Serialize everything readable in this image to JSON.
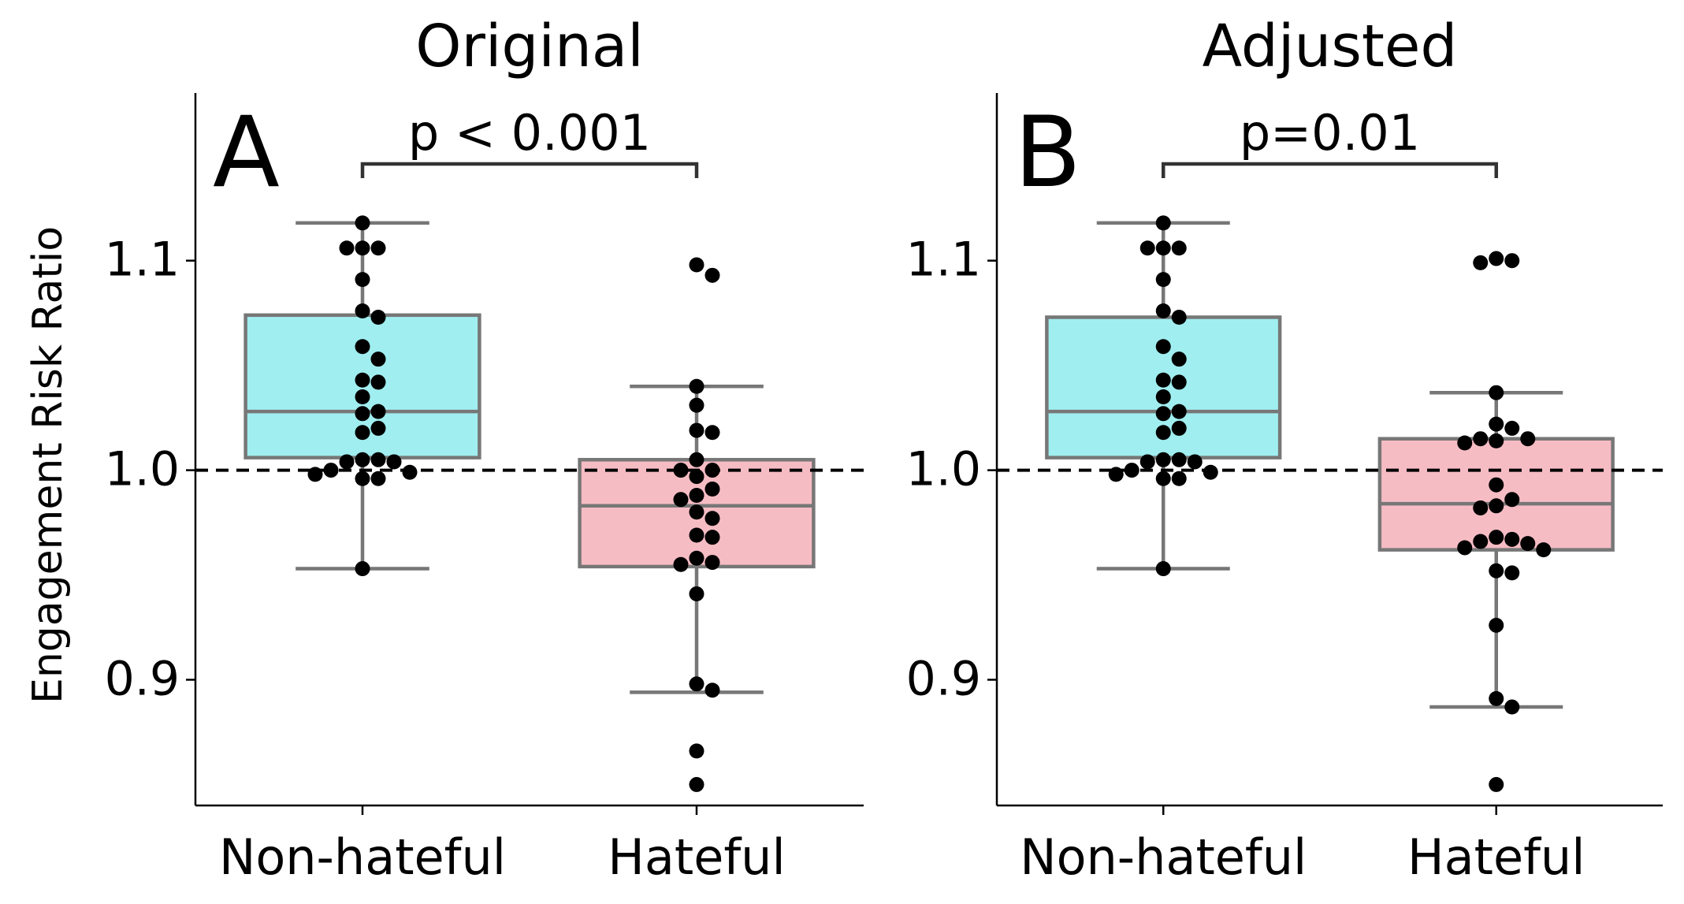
{
  "figure": {
    "ylabel": "Engagement Risk Ratio"
  },
  "chart_data": [
    {
      "type": "box",
      "panel_letter": "A",
      "title": "Original",
      "ylabel": "Engagement Risk Ratio",
      "ylim": [
        0.84,
        1.18
      ],
      "yticks": [
        0.9,
        1.0,
        1.1
      ],
      "ytick_labels": [
        "0.9",
        "1.0",
        "1.1"
      ],
      "reference_line": 1.0,
      "categories": [
        "Non-hateful",
        "Hateful"
      ],
      "annotation": "p < 0.001",
      "colors": {
        "Non-hateful": "#a0eef0",
        "Hateful": "#f6bcc4"
      },
      "boxes": [
        {
          "category": "Non-hateful",
          "q1": 1.006,
          "median": 1.028,
          "q3": 1.074,
          "whisker_low": 0.953,
          "whisker_high": 1.118
        },
        {
          "category": "Hateful",
          "q1": 0.954,
          "median": 0.983,
          "q3": 1.005,
          "whisker_low": 0.894,
          "whisker_high": 1.04
        }
      ],
      "points": [
        {
          "category": "Non-hateful",
          "values": [
            1.118,
            1.106,
            1.106,
            1.106,
            1.091,
            1.076,
            1.073,
            1.059,
            1.053,
            1.043,
            1.042,
            1.035,
            1.028,
            1.027,
            1.02,
            1.018,
            1.005,
            1.005,
            1.004,
            1.004,
            1.0,
            0.999,
            0.996,
            0.996,
            0.998,
            0.953
          ]
        },
        {
          "category": "Hateful",
          "values": [
            1.098,
            1.093,
            1.04,
            1.031,
            1.019,
            1.018,
            1.005,
            1.0,
            1.0,
            0.997,
            0.991,
            0.988,
            0.986,
            0.98,
            0.977,
            0.969,
            0.968,
            0.958,
            0.956,
            0.955,
            0.941,
            0.898,
            0.895,
            0.866,
            0.85
          ]
        }
      ]
    },
    {
      "type": "box",
      "panel_letter": "B",
      "title": "Adjusted",
      "ylabel": "",
      "ylim": [
        0.84,
        1.18
      ],
      "yticks": [
        0.9,
        1.0,
        1.1
      ],
      "ytick_labels": [
        "0.9",
        "1.0",
        "1.1"
      ],
      "reference_line": 1.0,
      "categories": [
        "Non-hateful",
        "Hateful"
      ],
      "annotation": "p=0.01",
      "colors": {
        "Non-hateful": "#a0eef0",
        "Hateful": "#f6bcc4"
      },
      "boxes": [
        {
          "category": "Non-hateful",
          "q1": 1.006,
          "median": 1.028,
          "q3": 1.073,
          "whisker_low": 0.953,
          "whisker_high": 1.118
        },
        {
          "category": "Hateful",
          "q1": 0.962,
          "median": 0.984,
          "q3": 1.015,
          "whisker_low": 0.887,
          "whisker_high": 1.037
        }
      ],
      "points": [
        {
          "category": "Non-hateful",
          "values": [
            1.118,
            1.106,
            1.106,
            1.106,
            1.091,
            1.076,
            1.073,
            1.059,
            1.053,
            1.043,
            1.042,
            1.035,
            1.028,
            1.027,
            1.02,
            1.018,
            1.005,
            1.005,
            1.004,
            1.004,
            1.0,
            0.999,
            0.996,
            0.996,
            0.998,
            0.953
          ]
        },
        {
          "category": "Hateful",
          "values": [
            1.101,
            1.1,
            1.099,
            1.037,
            1.022,
            1.02,
            1.015,
            1.015,
            1.014,
            1.013,
            0.993,
            0.986,
            0.983,
            0.982,
            0.968,
            0.967,
            0.966,
            0.965,
            0.963,
            0.962,
            0.952,
            0.951,
            0.926,
            0.891,
            0.887,
            0.85
          ]
        }
      ]
    }
  ]
}
